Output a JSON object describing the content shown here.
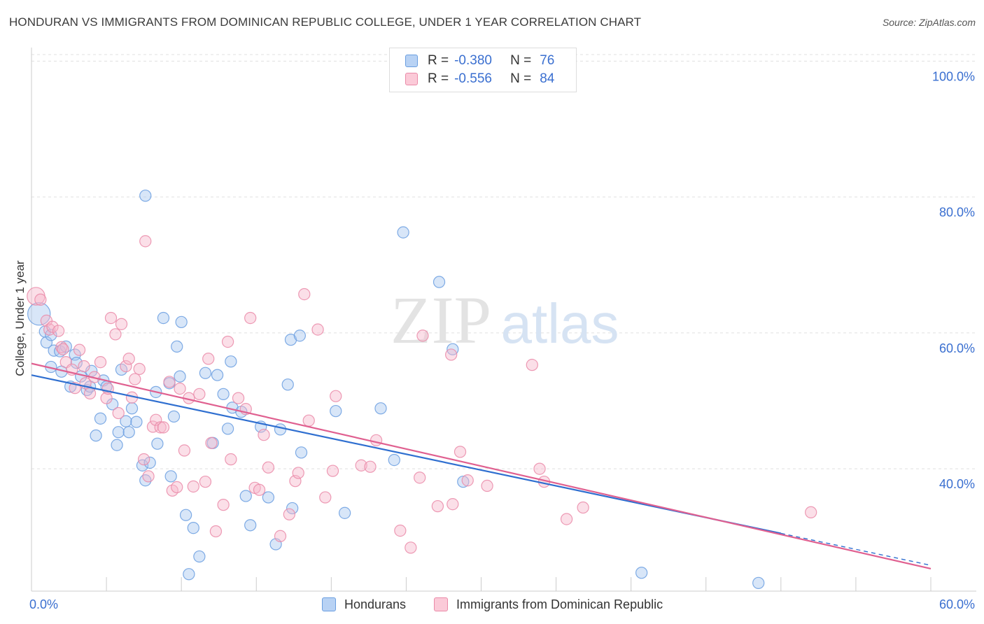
{
  "title": "HONDURAN VS IMMIGRANTS FROM DOMINICAN REPUBLIC COLLEGE, UNDER 1 YEAR CORRELATION CHART",
  "source": "Source: ZipAtlas.com",
  "watermark": {
    "zip": "ZIP",
    "atlas": "atlas"
  },
  "legend": [
    {
      "r_label": "R =",
      "r_value": "-0.380",
      "n_label": "N =",
      "n_value": "76"
    },
    {
      "r_label": "R =",
      "r_value": "-0.556",
      "n_label": "N =",
      "n_value": "84"
    }
  ],
  "bottom_legend": [
    "Hondurans",
    "Immigrants from Dominican Republic"
  ],
  "colors": {
    "blue_fill": "#a8c8f0",
    "blue_stroke": "#6a9ee0",
    "blue_line": "#2f6fd0",
    "pink_fill": "#f7b8cc",
    "pink_stroke": "#ea8aa8",
    "pink_line": "#e06090",
    "axis_text": "#3a6fd0",
    "grid": "#e0e0e0"
  },
  "chart_data": {
    "type": "scatter",
    "title": "HONDURAN VS IMMIGRANTS FROM DOMINICAN REPUBLIC COLLEGE, UNDER 1 YEAR CORRELATION CHART",
    "xlabel": "",
    "ylabel": "College, Under 1 year",
    "xlim": [
      0,
      60
    ],
    "ylim": [
      22,
      102
    ],
    "x_tick_labels": [
      "0.0%",
      "60.0%"
    ],
    "y_ticks": [
      40,
      60,
      80,
      100
    ],
    "y_tick_labels": [
      "40.0%",
      "60.0%",
      "80.0%",
      "100.0%"
    ],
    "series": [
      {
        "name": "Hondurans",
        "r": -0.38,
        "n": 76,
        "trend": {
          "x0": 0,
          "y0": 53.8,
          "x1": 50,
          "y1": 30.5,
          "dash_to_x": 60,
          "dash_to_y": 25.8
        },
        "points": [
          [
            0.5,
            62.8,
            28
          ],
          [
            0.9,
            60.2,
            14
          ],
          [
            1.0,
            58.6,
            14
          ],
          [
            1.3,
            59.7,
            14
          ],
          [
            1.3,
            55.0,
            14
          ],
          [
            1.5,
            57.4,
            14
          ],
          [
            1.9,
            57.3,
            14
          ],
          [
            2.0,
            54.3,
            14
          ],
          [
            2.3,
            58.0,
            14
          ],
          [
            2.6,
            52.1,
            14
          ],
          [
            2.9,
            56.8,
            14
          ],
          [
            3.0,
            55.6,
            14
          ],
          [
            3.3,
            53.6,
            14
          ],
          [
            3.7,
            51.6,
            14
          ],
          [
            3.9,
            52.1,
            14
          ],
          [
            4.0,
            54.4,
            14
          ],
          [
            4.3,
            44.9,
            14
          ],
          [
            4.6,
            47.4,
            14
          ],
          [
            4.8,
            53.0,
            14
          ],
          [
            5.0,
            52.1,
            14
          ],
          [
            5.4,
            49.5,
            14
          ],
          [
            5.7,
            43.5,
            14
          ],
          [
            5.8,
            45.4,
            14
          ],
          [
            6.0,
            54.6,
            14
          ],
          [
            6.3,
            47.0,
            14
          ],
          [
            6.5,
            45.4,
            14
          ],
          [
            6.7,
            48.9,
            14
          ],
          [
            7.0,
            46.9,
            14
          ],
          [
            7.4,
            40.5,
            14
          ],
          [
            7.6,
            80.2,
            14
          ],
          [
            7.6,
            38.3,
            14
          ],
          [
            7.9,
            40.9,
            14
          ],
          [
            8.3,
            51.3,
            14
          ],
          [
            8.4,
            43.7,
            14
          ],
          [
            8.8,
            62.2,
            14
          ],
          [
            9.2,
            52.6,
            14
          ],
          [
            9.3,
            38.9,
            14
          ],
          [
            9.5,
            47.7,
            14
          ],
          [
            9.7,
            58.0,
            14
          ],
          [
            9.9,
            53.6,
            14
          ],
          [
            10.0,
            61.6,
            14
          ],
          [
            10.3,
            33.2,
            14
          ],
          [
            10.5,
            24.5,
            14
          ],
          [
            10.8,
            31.3,
            14
          ],
          [
            11.2,
            27.1,
            14
          ],
          [
            11.6,
            54.1,
            14
          ],
          [
            12.1,
            43.8,
            14
          ],
          [
            12.4,
            53.8,
            14
          ],
          [
            12.8,
            51.0,
            14
          ],
          [
            13.1,
            45.9,
            14
          ],
          [
            13.3,
            55.8,
            14
          ],
          [
            13.4,
            49.0,
            14
          ],
          [
            14.0,
            48.4,
            14
          ],
          [
            14.3,
            36.0,
            14
          ],
          [
            14.6,
            31.7,
            14
          ],
          [
            15.3,
            46.2,
            14
          ],
          [
            15.8,
            35.8,
            14
          ],
          [
            16.3,
            28.9,
            14
          ],
          [
            16.6,
            45.8,
            14
          ],
          [
            17.1,
            52.4,
            14
          ],
          [
            17.3,
            59.0,
            14
          ],
          [
            17.4,
            34.2,
            14
          ],
          [
            18.0,
            42.4,
            14
          ],
          [
            17.9,
            59.6,
            14
          ],
          [
            20.3,
            48.5,
            14
          ],
          [
            20.9,
            33.5,
            14
          ],
          [
            23.3,
            48.9,
            14
          ],
          [
            24.2,
            41.3,
            14
          ],
          [
            24.8,
            74.8,
            14
          ],
          [
            27.2,
            67.5,
            14
          ],
          [
            28.1,
            57.6,
            14
          ],
          [
            28.8,
            38.1,
            14
          ],
          [
            40.7,
            24.7,
            14
          ],
          [
            48.5,
            23.2,
            14
          ]
        ]
      },
      {
        "name": "Immigrants from Dominican Republic",
        "r": -0.556,
        "n": 84,
        "trend": {
          "x0": 0,
          "y0": 55.5,
          "x1": 60,
          "y1": 25.3
        },
        "points": [
          [
            0.3,
            65.4,
            22
          ],
          [
            0.6,
            64.9,
            14
          ],
          [
            1.0,
            61.8,
            14
          ],
          [
            1.2,
            60.5,
            14
          ],
          [
            1.4,
            60.9,
            14
          ],
          [
            1.8,
            60.3,
            14
          ],
          [
            2.0,
            57.9,
            14
          ],
          [
            2.1,
            57.6,
            14
          ],
          [
            2.3,
            55.7,
            14
          ],
          [
            2.7,
            54.6,
            14
          ],
          [
            2.9,
            51.9,
            14
          ],
          [
            3.2,
            57.5,
            14
          ],
          [
            3.5,
            55.1,
            14
          ],
          [
            3.6,
            52.6,
            14
          ],
          [
            3.9,
            51.1,
            14
          ],
          [
            4.2,
            53.5,
            14
          ],
          [
            4.6,
            55.7,
            14
          ],
          [
            5.0,
            50.4,
            14
          ],
          [
            5.1,
            51.8,
            14
          ],
          [
            5.3,
            62.2,
            14
          ],
          [
            5.6,
            59.8,
            14
          ],
          [
            5.8,
            48.2,
            14
          ],
          [
            6.0,
            61.3,
            14
          ],
          [
            6.3,
            55.1,
            14
          ],
          [
            6.5,
            56.2,
            14
          ],
          [
            6.7,
            50.5,
            14
          ],
          [
            6.9,
            53.2,
            14
          ],
          [
            7.2,
            54.7,
            14
          ],
          [
            7.5,
            41.4,
            14
          ],
          [
            7.6,
            73.5,
            14
          ],
          [
            7.8,
            38.9,
            14
          ],
          [
            8.1,
            46.2,
            14
          ],
          [
            8.3,
            47.2,
            14
          ],
          [
            8.6,
            46.1,
            14
          ],
          [
            8.8,
            46.1,
            14
          ],
          [
            9.2,
            52.8,
            14
          ],
          [
            9.4,
            36.8,
            14
          ],
          [
            9.7,
            37.3,
            14
          ],
          [
            9.9,
            51.8,
            14
          ],
          [
            10.2,
            42.7,
            14
          ],
          [
            10.5,
            50.4,
            14
          ],
          [
            10.8,
            37.4,
            14
          ],
          [
            11.2,
            51.0,
            14
          ],
          [
            11.6,
            38.1,
            14
          ],
          [
            11.8,
            56.2,
            14
          ],
          [
            12.0,
            43.8,
            14
          ],
          [
            12.3,
            30.8,
            14
          ],
          [
            12.8,
            34.7,
            14
          ],
          [
            13.1,
            58.7,
            14
          ],
          [
            13.3,
            41.4,
            14
          ],
          [
            13.8,
            50.4,
            14
          ],
          [
            14.3,
            48.8,
            14
          ],
          [
            14.6,
            62.2,
            14
          ],
          [
            14.9,
            37.2,
            14
          ],
          [
            15.2,
            36.9,
            14
          ],
          [
            15.5,
            45.0,
            14
          ],
          [
            15.8,
            40.2,
            14
          ],
          [
            16.6,
            30.1,
            14
          ],
          [
            17.2,
            33.3,
            14
          ],
          [
            17.6,
            38.2,
            14
          ],
          [
            17.8,
            39.4,
            14
          ],
          [
            18.2,
            65.7,
            14
          ],
          [
            18.5,
            47.1,
            14
          ],
          [
            19.1,
            60.5,
            14
          ],
          [
            19.6,
            35.8,
            14
          ],
          [
            20.1,
            39.7,
            14
          ],
          [
            20.3,
            50.7,
            14
          ],
          [
            22.0,
            40.5,
            14
          ],
          [
            22.6,
            40.3,
            14
          ],
          [
            23.0,
            44.2,
            14
          ],
          [
            24.6,
            30.9,
            14
          ],
          [
            25.3,
            28.4,
            14
          ],
          [
            25.9,
            38.7,
            14
          ],
          [
            26.1,
            59.6,
            14
          ],
          [
            27.1,
            34.5,
            14
          ],
          [
            28.0,
            56.8,
            14
          ],
          [
            28.1,
            34.8,
            14
          ],
          [
            28.6,
            42.5,
            14
          ],
          [
            29.1,
            38.3,
            14
          ],
          [
            30.4,
            37.5,
            14
          ],
          [
            33.4,
            55.3,
            14
          ],
          [
            33.9,
            40.0,
            14
          ],
          [
            34.2,
            38.1,
            14
          ],
          [
            35.7,
            32.6,
            14
          ],
          [
            36.8,
            34.3,
            14
          ],
          [
            52.0,
            33.6,
            14
          ]
        ]
      }
    ]
  }
}
